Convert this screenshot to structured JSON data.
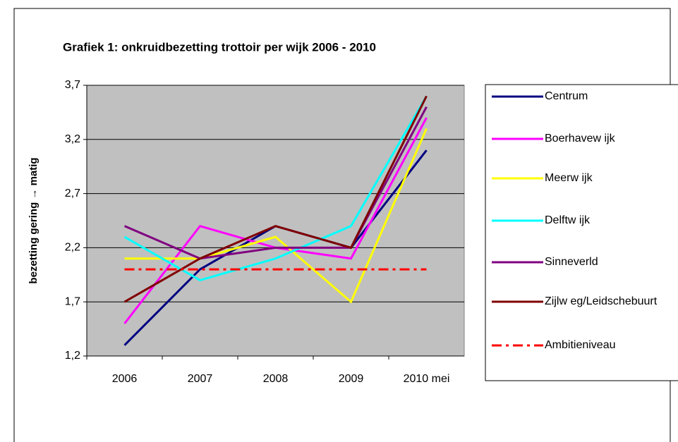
{
  "chart_data": {
    "type": "line",
    "title": "Grafiek 1: onkruidbezetting trottoir per wijk 2006 - 2010",
    "y_label": "bezetting gering → matig",
    "categories": [
      "2006",
      "2007",
      "2008",
      "2009",
      "2010 mei"
    ],
    "ylim": [
      1.2,
      3.7
    ],
    "yticks": [
      {
        "value": 1.2,
        "label": "1,2"
      },
      {
        "value": 1.7,
        "label": "1,7"
      },
      {
        "value": 2.2,
        "label": "2,2"
      },
      {
        "value": 2.7,
        "label": "2,7"
      },
      {
        "value": 3.2,
        "label": "3,2"
      },
      {
        "value": 3.7,
        "label": "3,7"
      }
    ],
    "grid": true,
    "legend": "right",
    "series": [
      {
        "name": "Centrum",
        "color": "#000080",
        "values": [
          1.3,
          2.0,
          2.4,
          2.2,
          3.1
        ]
      },
      {
        "name": "Boerhavew ijk",
        "color": "#ff00ff",
        "values": [
          1.5,
          2.4,
          2.2,
          2.1,
          3.4
        ]
      },
      {
        "name": "Meerw ijk",
        "color": "#ffff00",
        "values": [
          2.1,
          2.1,
          2.3,
          1.7,
          3.3
        ]
      },
      {
        "name": "Delftw ijk",
        "color": "#00ffff",
        "values": [
          2.3,
          1.9,
          2.1,
          2.4,
          3.6
        ]
      },
      {
        "name": "Sinneverld",
        "color": "#800080",
        "values": [
          2.4,
          2.1,
          2.2,
          2.2,
          3.5
        ]
      },
      {
        "name": "Zijlw eg/Leidschebuurt",
        "color": "#800000",
        "values": [
          1.7,
          2.1,
          2.4,
          2.2,
          3.6
        ]
      },
      {
        "name": "Ambitieniveau",
        "color": "#ff0000",
        "dashed": true,
        "values": [
          2.0,
          2.0,
          2.0,
          2.0,
          2.0
        ]
      }
    ]
  }
}
